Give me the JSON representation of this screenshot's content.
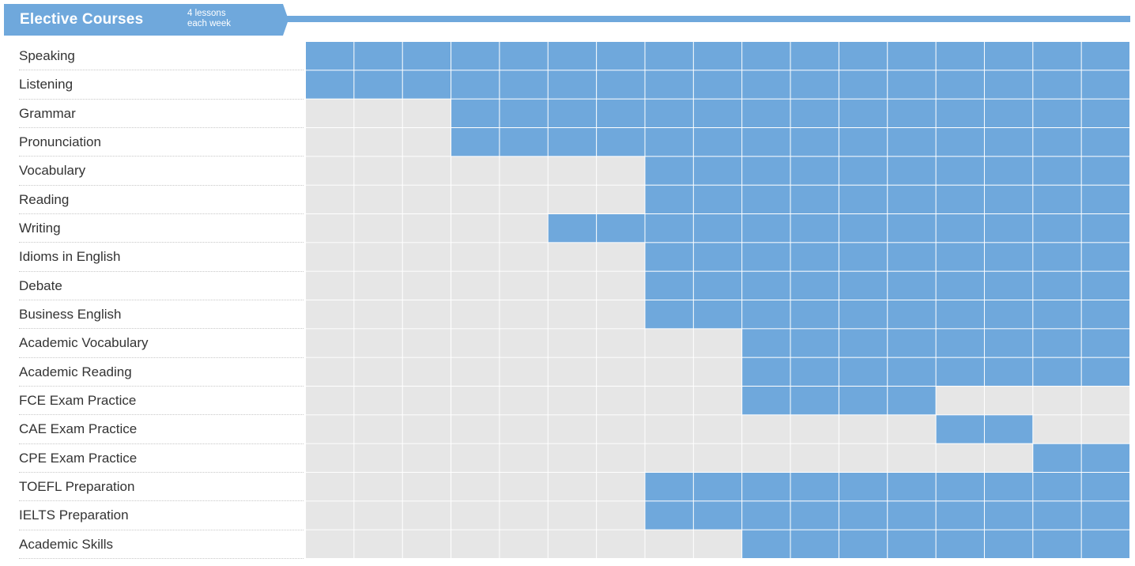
{
  "header": {
    "title": "Elective Courses",
    "subtitle_line1": "4 lessons",
    "subtitle_line2": "each week"
  },
  "colors": {
    "active": "#6fa8dc",
    "inactive": "#e6e6e6",
    "grid_line": "#ffffff"
  },
  "column_count": 17,
  "courses": [
    {
      "name": "Speaking",
      "active": [
        [
          0,
          16
        ]
      ]
    },
    {
      "name": "Listening",
      "active": [
        [
          0,
          16
        ]
      ]
    },
    {
      "name": "Grammar",
      "active": [
        [
          3,
          16
        ]
      ]
    },
    {
      "name": "Pronunciation",
      "active": [
        [
          3,
          16
        ]
      ]
    },
    {
      "name": "Vocabulary",
      "active": [
        [
          7,
          16
        ]
      ]
    },
    {
      "name": "Reading",
      "active": [
        [
          7,
          16
        ]
      ]
    },
    {
      "name": "Writing",
      "active": [
        [
          5,
          16
        ]
      ]
    },
    {
      "name": "Idioms in English",
      "active": [
        [
          7,
          16
        ]
      ]
    },
    {
      "name": "Debate",
      "active": [
        [
          7,
          16
        ]
      ]
    },
    {
      "name": "Business English",
      "active": [
        [
          7,
          16
        ]
      ]
    },
    {
      "name": "Academic Vocabulary",
      "active": [
        [
          9,
          16
        ]
      ]
    },
    {
      "name": "Academic Reading",
      "active": [
        [
          9,
          16
        ]
      ]
    },
    {
      "name": "FCE Exam Practice",
      "active": [
        [
          9,
          12
        ]
      ]
    },
    {
      "name": "CAE Exam Practice",
      "active": [
        [
          13,
          14
        ]
      ]
    },
    {
      "name": "CPE Exam Practice",
      "active": [
        [
          15,
          16
        ]
      ]
    },
    {
      "name": "TOEFL Preparation",
      "active": [
        [
          7,
          16
        ]
      ]
    },
    {
      "name": "IELTS Preparation",
      "active": [
        [
          7,
          16
        ]
      ]
    },
    {
      "name": "Academic Skills",
      "active": [
        [
          9,
          16
        ]
      ]
    }
  ]
}
